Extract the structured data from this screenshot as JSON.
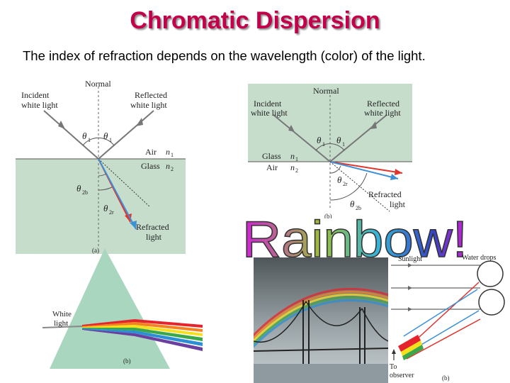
{
  "slide": {
    "title": "Chromatic Dispersion",
    "subtitle": "The index of refraction depends on the wavelength (color) of the light."
  },
  "fig_a": {
    "normal": "Normal",
    "incident_1": "Incident",
    "incident_2": "white light",
    "reflected_1": "Reflected",
    "reflected_2": "white light",
    "theta1_left": "θ",
    "theta1_right": "θ",
    "sub1": "1",
    "air": "Air",
    "n1": "n",
    "glass": "Glass",
    "n2": "n",
    "sub_n1": "1",
    "sub_n2": "2",
    "theta2b": "θ",
    "sub2b": "2b",
    "theta2r": "θ",
    "sub2r": "2r",
    "refracted_1": "Refracted",
    "refracted_2": "light",
    "caption": "(a)"
  },
  "fig_b": {
    "normal": "Normal",
    "incident_1": "Incident",
    "incident_2": "white light",
    "reflected_1": "Reflected",
    "reflected_2": "white light",
    "theta1": "θ",
    "sub1": "1",
    "glass": "Glass",
    "n1": "n",
    "sub_n1": "1",
    "air": "Air",
    "n2": "n",
    "sub_n2": "2",
    "theta2r": "θ",
    "sub2r": "2r",
    "theta2b": "θ",
    "sub2b": "2b",
    "refracted_1": "Refracted",
    "refracted_2": "light",
    "caption": "(b)"
  },
  "fig_prism": {
    "white_1": "White",
    "white_2": "light",
    "caption": "(b)"
  },
  "rainbow_word": "Rainbow!",
  "rainbow_letter_colors": [
    "#d0d",
    "#c6c",
    "#9a3",
    "#7a3",
    "#3ac",
    "#3ac",
    "#33c",
    "#c3c"
  ],
  "fig_drops": {
    "sunlight": "Sunlight",
    "water_drops": "Water drops",
    "to": "To",
    "observer": "observer",
    "caption": "(b)"
  },
  "colors": {
    "title": "#c4004a",
    "panel_green": "#c7ddcc",
    "ray_red": "#e0342c",
    "ray_blue": "#3d8fd6"
  }
}
